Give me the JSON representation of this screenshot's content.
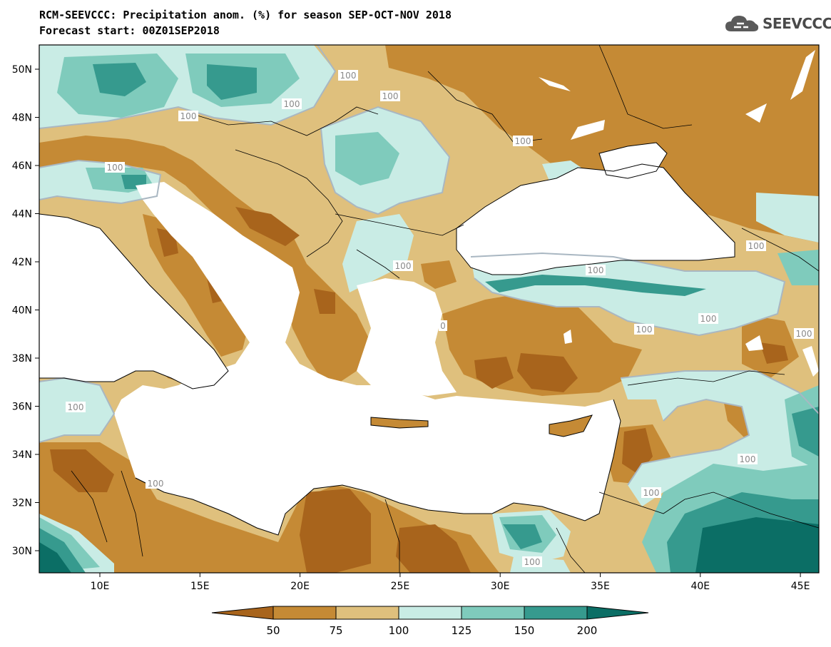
{
  "header": {
    "title_line1": "RCM-SEEVCCC: Precipitation anom. (%) for season SEP-OCT-NOV 2018",
    "title_line2": "Forecast start: 00Z01SEP2018",
    "logo_text": "SEEVCCC"
  },
  "map": {
    "lat_labels": [
      "50N",
      "48N",
      "46N",
      "44N",
      "42N",
      "40N",
      "38N",
      "36N",
      "34N",
      "32N",
      "30N"
    ],
    "lon_labels": [
      "10E",
      "15E",
      "20E",
      "25E",
      "30E",
      "35E",
      "40E",
      "45E"
    ],
    "contour_labels": [
      "100",
      "100",
      "100",
      "100",
      "100",
      "100",
      "100",
      "100",
      "100",
      "100",
      "100",
      "100",
      "100",
      "100",
      "100",
      "100",
      "0",
      "100",
      "100",
      "100"
    ],
    "colors": {
      "below_50": "#a8641c",
      "50_75": "#c58a35",
      "75_100": "#dfc07d",
      "100_125": "#c9ece5",
      "125_150": "#7fcbbc",
      "150_200": "#369a8e",
      "above_200": "#0b6e65",
      "sea": "#ffffff",
      "contour_100": "#a9b7c2"
    }
  },
  "colorbar": {
    "ticks": [
      "50",
      "75",
      "100",
      "125",
      "150",
      "200"
    ],
    "colors": [
      "#a8641c",
      "#c58a35",
      "#dfc07d",
      "#c9ece5",
      "#7fcbbc",
      "#369a8e",
      "#0b6e65"
    ]
  }
}
